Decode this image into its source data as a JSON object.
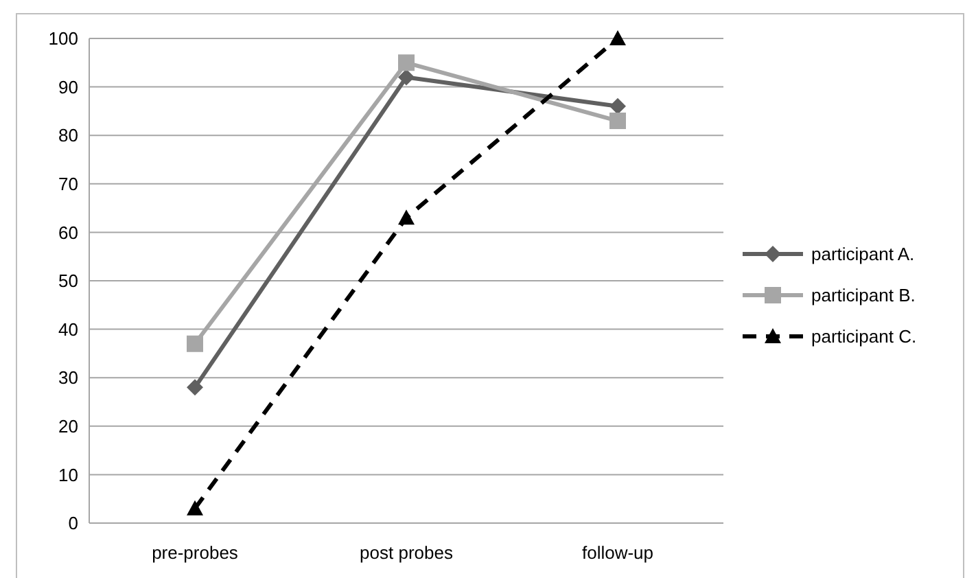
{
  "chart_data": {
    "type": "line",
    "categories": [
      "pre-probes",
      "post probes",
      "follow-up"
    ],
    "series": [
      {
        "name": "participant A.",
        "color": "#606060",
        "values": [
          28,
          92,
          86
        ],
        "marker": "diamond",
        "line_style": "solid"
      },
      {
        "name": "participant B.",
        "color": "#a6a6a6",
        "values": [
          37,
          95,
          83
        ],
        "marker": "square",
        "line_style": "solid"
      },
      {
        "name": "participant C.",
        "color": "#000000",
        "values": [
          3,
          63,
          100
        ],
        "marker": "triangle",
        "line_style": "dashed"
      }
    ],
    "ylim": [
      0,
      100
    ],
    "yticks": [
      0,
      10,
      20,
      30,
      40,
      50,
      60,
      70,
      80,
      90,
      100
    ],
    "grid": "y",
    "legend": "right"
  }
}
